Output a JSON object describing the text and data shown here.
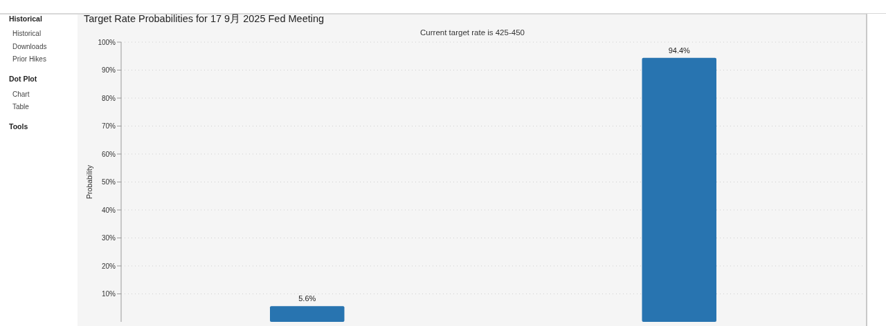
{
  "chart_data": {
    "type": "bar",
    "title": "Target Rate Probabilities for 17 9月 2025 Fed Meeting",
    "subtitle": "Current target rate is 425-450",
    "ylabel": "Probability",
    "categories": [
      null,
      null
    ],
    "values": [
      5.6,
      94.4
    ],
    "value_labels": [
      "5.6%",
      "94.4%"
    ],
    "color": "#2874b0",
    "ylim": [
      0,
      100
    ],
    "yticks": [
      {
        "value": 10,
        "label": "10%"
      },
      {
        "value": 20,
        "label": "20%"
      },
      {
        "value": 30,
        "label": "30%"
      },
      {
        "value": 40,
        "label": "40%"
      },
      {
        "value": 50,
        "label": "50%"
      },
      {
        "value": 60,
        "label": "60%"
      },
      {
        "value": 70,
        "label": "70%"
      },
      {
        "value": 80,
        "label": "80%"
      },
      {
        "value": 90,
        "label": "90%"
      },
      {
        "value": 100,
        "label": "100%"
      }
    ],
    "grid": "y",
    "annotations": [
      "Historical",
      "Historical",
      "Downloads",
      "Prior Hikes",
      "Dot Plot",
      "Chart",
      "Table",
      "Tools"
    ]
  }
}
